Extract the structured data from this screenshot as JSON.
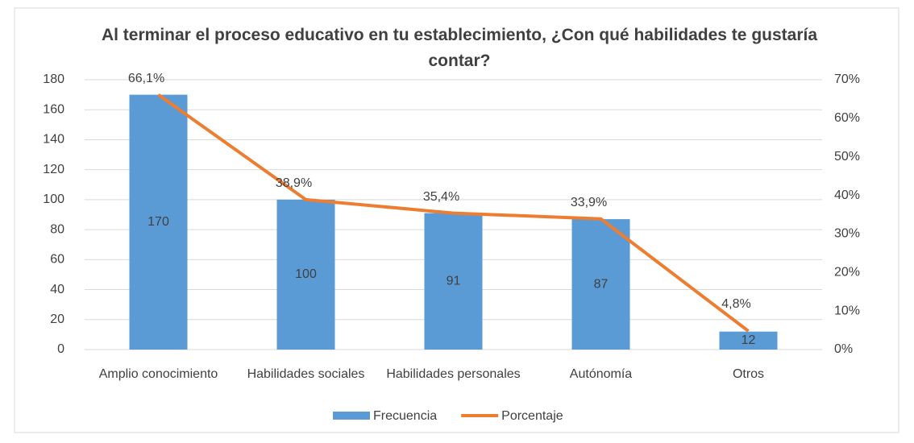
{
  "chart_data": {
    "type": "bar_line",
    "title": "Al terminar el proceso educativo en tu establecimiento, ¿Con qué habilidades te gustaría contar?",
    "categories": [
      "Amplio conocimiento",
      "Habilidades sociales",
      "Habilidades personales",
      "Autónomía",
      "Otros"
    ],
    "series": [
      {
        "name": "Frecuencia",
        "type": "bar",
        "color": "#5b9bd5",
        "axis": "y",
        "values": [
          170,
          100,
          91,
          87,
          12
        ]
      },
      {
        "name": "Porcentaje",
        "type": "line",
        "color": "#ed7d31",
        "axis": "y2",
        "values": [
          66.1,
          38.9,
          35.4,
          33.9,
          4.8
        ],
        "value_labels": [
          "66,1%",
          "38,9%",
          "35,4%",
          "33,9%",
          "4,8%"
        ]
      }
    ],
    "ylim": [
      0,
      180
    ],
    "yticks": [
      0,
      20,
      40,
      60,
      80,
      100,
      120,
      140,
      160,
      180
    ],
    "y2lim": [
      0,
      70
    ],
    "y2ticks": [
      {
        "value": 0,
        "label": "0%"
      },
      {
        "value": 10,
        "label": "10%"
      },
      {
        "value": 20,
        "label": "20%"
      },
      {
        "value": 30,
        "label": "30%"
      },
      {
        "value": 40,
        "label": "40%"
      },
      {
        "value": 50,
        "label": "50%"
      },
      {
        "value": 60,
        "label": "60%"
      },
      {
        "value": 70,
        "label": "70%"
      }
    ],
    "grid": true,
    "legend": "bottom"
  }
}
